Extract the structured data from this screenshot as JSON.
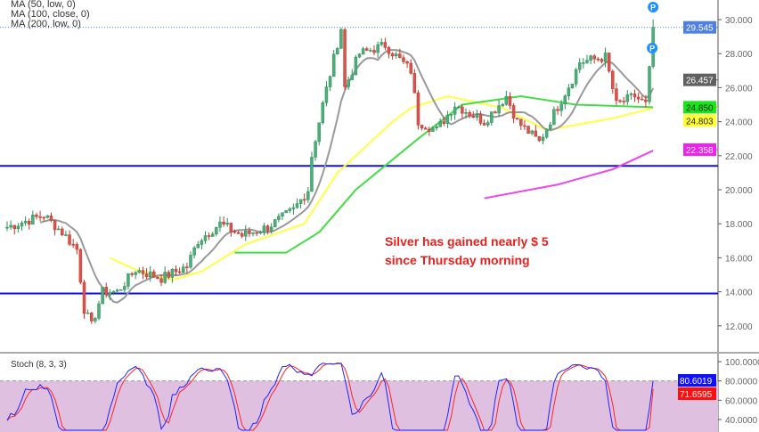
{
  "chart_data": {
    "type": "candlestick",
    "legend": [
      "MA (50, low, 0)",
      "MA (100, close, 0)",
      "MA (200, low, 0)"
    ],
    "annotation": [
      "Silver has gained nearly $ 5",
      "since Thursday morning"
    ],
    "price_axis": {
      "ylim": [
        11,
        30.6
      ],
      "ticks": [
        "30.000",
        "28.000",
        "26.000",
        "24.000",
        "22.000",
        "20.000",
        "18.000",
        "16.000",
        "14.000",
        "12.000"
      ]
    },
    "price_labels": [
      {
        "value": "29.545",
        "color": "#4f7fe0"
      },
      {
        "value": "26.457",
        "color": "#606060"
      },
      {
        "value": "24.850",
        "color": "#19e619"
      },
      {
        "value": "24.803",
        "color": "#ffff33"
      },
      {
        "value": "22.358",
        "color": "#ee22ee"
      }
    ],
    "current_price": 29.545,
    "horizontal_lines": [
      21.4,
      13.9
    ],
    "candle_count": 177,
    "close_keypoints": [
      [
        0,
        17.8
      ],
      [
        10,
        18.5
      ],
      [
        15,
        17.5
      ],
      [
        19,
        16.5
      ],
      [
        21,
        13
      ],
      [
        23,
        12.0
      ],
      [
        26,
        14
      ],
      [
        30,
        14
      ],
      [
        35,
        15.3
      ],
      [
        42,
        14.8
      ],
      [
        49,
        15.5
      ],
      [
        52,
        17
      ],
      [
        58,
        18
      ],
      [
        64,
        17.3
      ],
      [
        71,
        17.8
      ],
      [
        78,
        18.8
      ],
      [
        82,
        20
      ],
      [
        83,
        22
      ],
      [
        86,
        25
      ],
      [
        91,
        29.5
      ],
      [
        92,
        26
      ],
      [
        96,
        28
      ],
      [
        103,
        28.5
      ],
      [
        110,
        27
      ],
      [
        112,
        24
      ],
      [
        117,
        23.5
      ],
      [
        122,
        25
      ],
      [
        130,
        24
      ],
      [
        136,
        25.5
      ],
      [
        139,
        24
      ],
      [
        145,
        22.8
      ],
      [
        149,
        24.5
      ],
      [
        154,
        26.5
      ],
      [
        156,
        27.5
      ],
      [
        163,
        27.8
      ],
      [
        166,
        25
      ],
      [
        171,
        25.5
      ],
      [
        174,
        25
      ],
      [
        175,
        27
      ],
      [
        176,
        29.5
      ]
    ],
    "ma_lines": [
      {
        "name": "MA (50, low, 0)",
        "color": "#ffff44",
        "points": [
          [
            28,
            16
          ],
          [
            35,
            15.3
          ],
          [
            45,
            14.7
          ],
          [
            53,
            15.2
          ],
          [
            65,
            16.8
          ],
          [
            81,
            18
          ],
          [
            90,
            21
          ],
          [
            105,
            24
          ],
          [
            110,
            24.8
          ],
          [
            120,
            25.5
          ],
          [
            135,
            24.8
          ],
          [
            147,
            23.5
          ],
          [
            165,
            24.2
          ],
          [
            176,
            24.8
          ]
        ]
      },
      {
        "name": "MA (100, close, 0)",
        "color": "#44dd44",
        "points": [
          [
            62,
            16.3
          ],
          [
            76,
            16.3
          ],
          [
            85,
            17.5
          ],
          [
            95,
            20
          ],
          [
            112,
            23
          ],
          [
            124,
            25
          ],
          [
            140,
            25.5
          ],
          [
            155,
            25
          ],
          [
            176,
            24.85
          ]
        ]
      },
      {
        "name": "MA (200, low, 0)",
        "color": "#ee44ee",
        "points": [
          [
            130,
            19.5
          ],
          [
            150,
            20.3
          ],
          [
            165,
            21.2
          ],
          [
            176,
            22.3
          ]
        ]
      }
    ],
    "stochastic": {
      "title": "Stoch (8, 3, 3)",
      "ticks": [
        "100.0000",
        "80.0000",
        "60.0000",
        "40.0000"
      ],
      "k_value": "80.6019",
      "d_value": "71.6595",
      "k_color": "#2222ff",
      "d_color": "#ff2222",
      "band": [
        20,
        80
      ]
    },
    "markers": [
      "P",
      "P"
    ]
  }
}
